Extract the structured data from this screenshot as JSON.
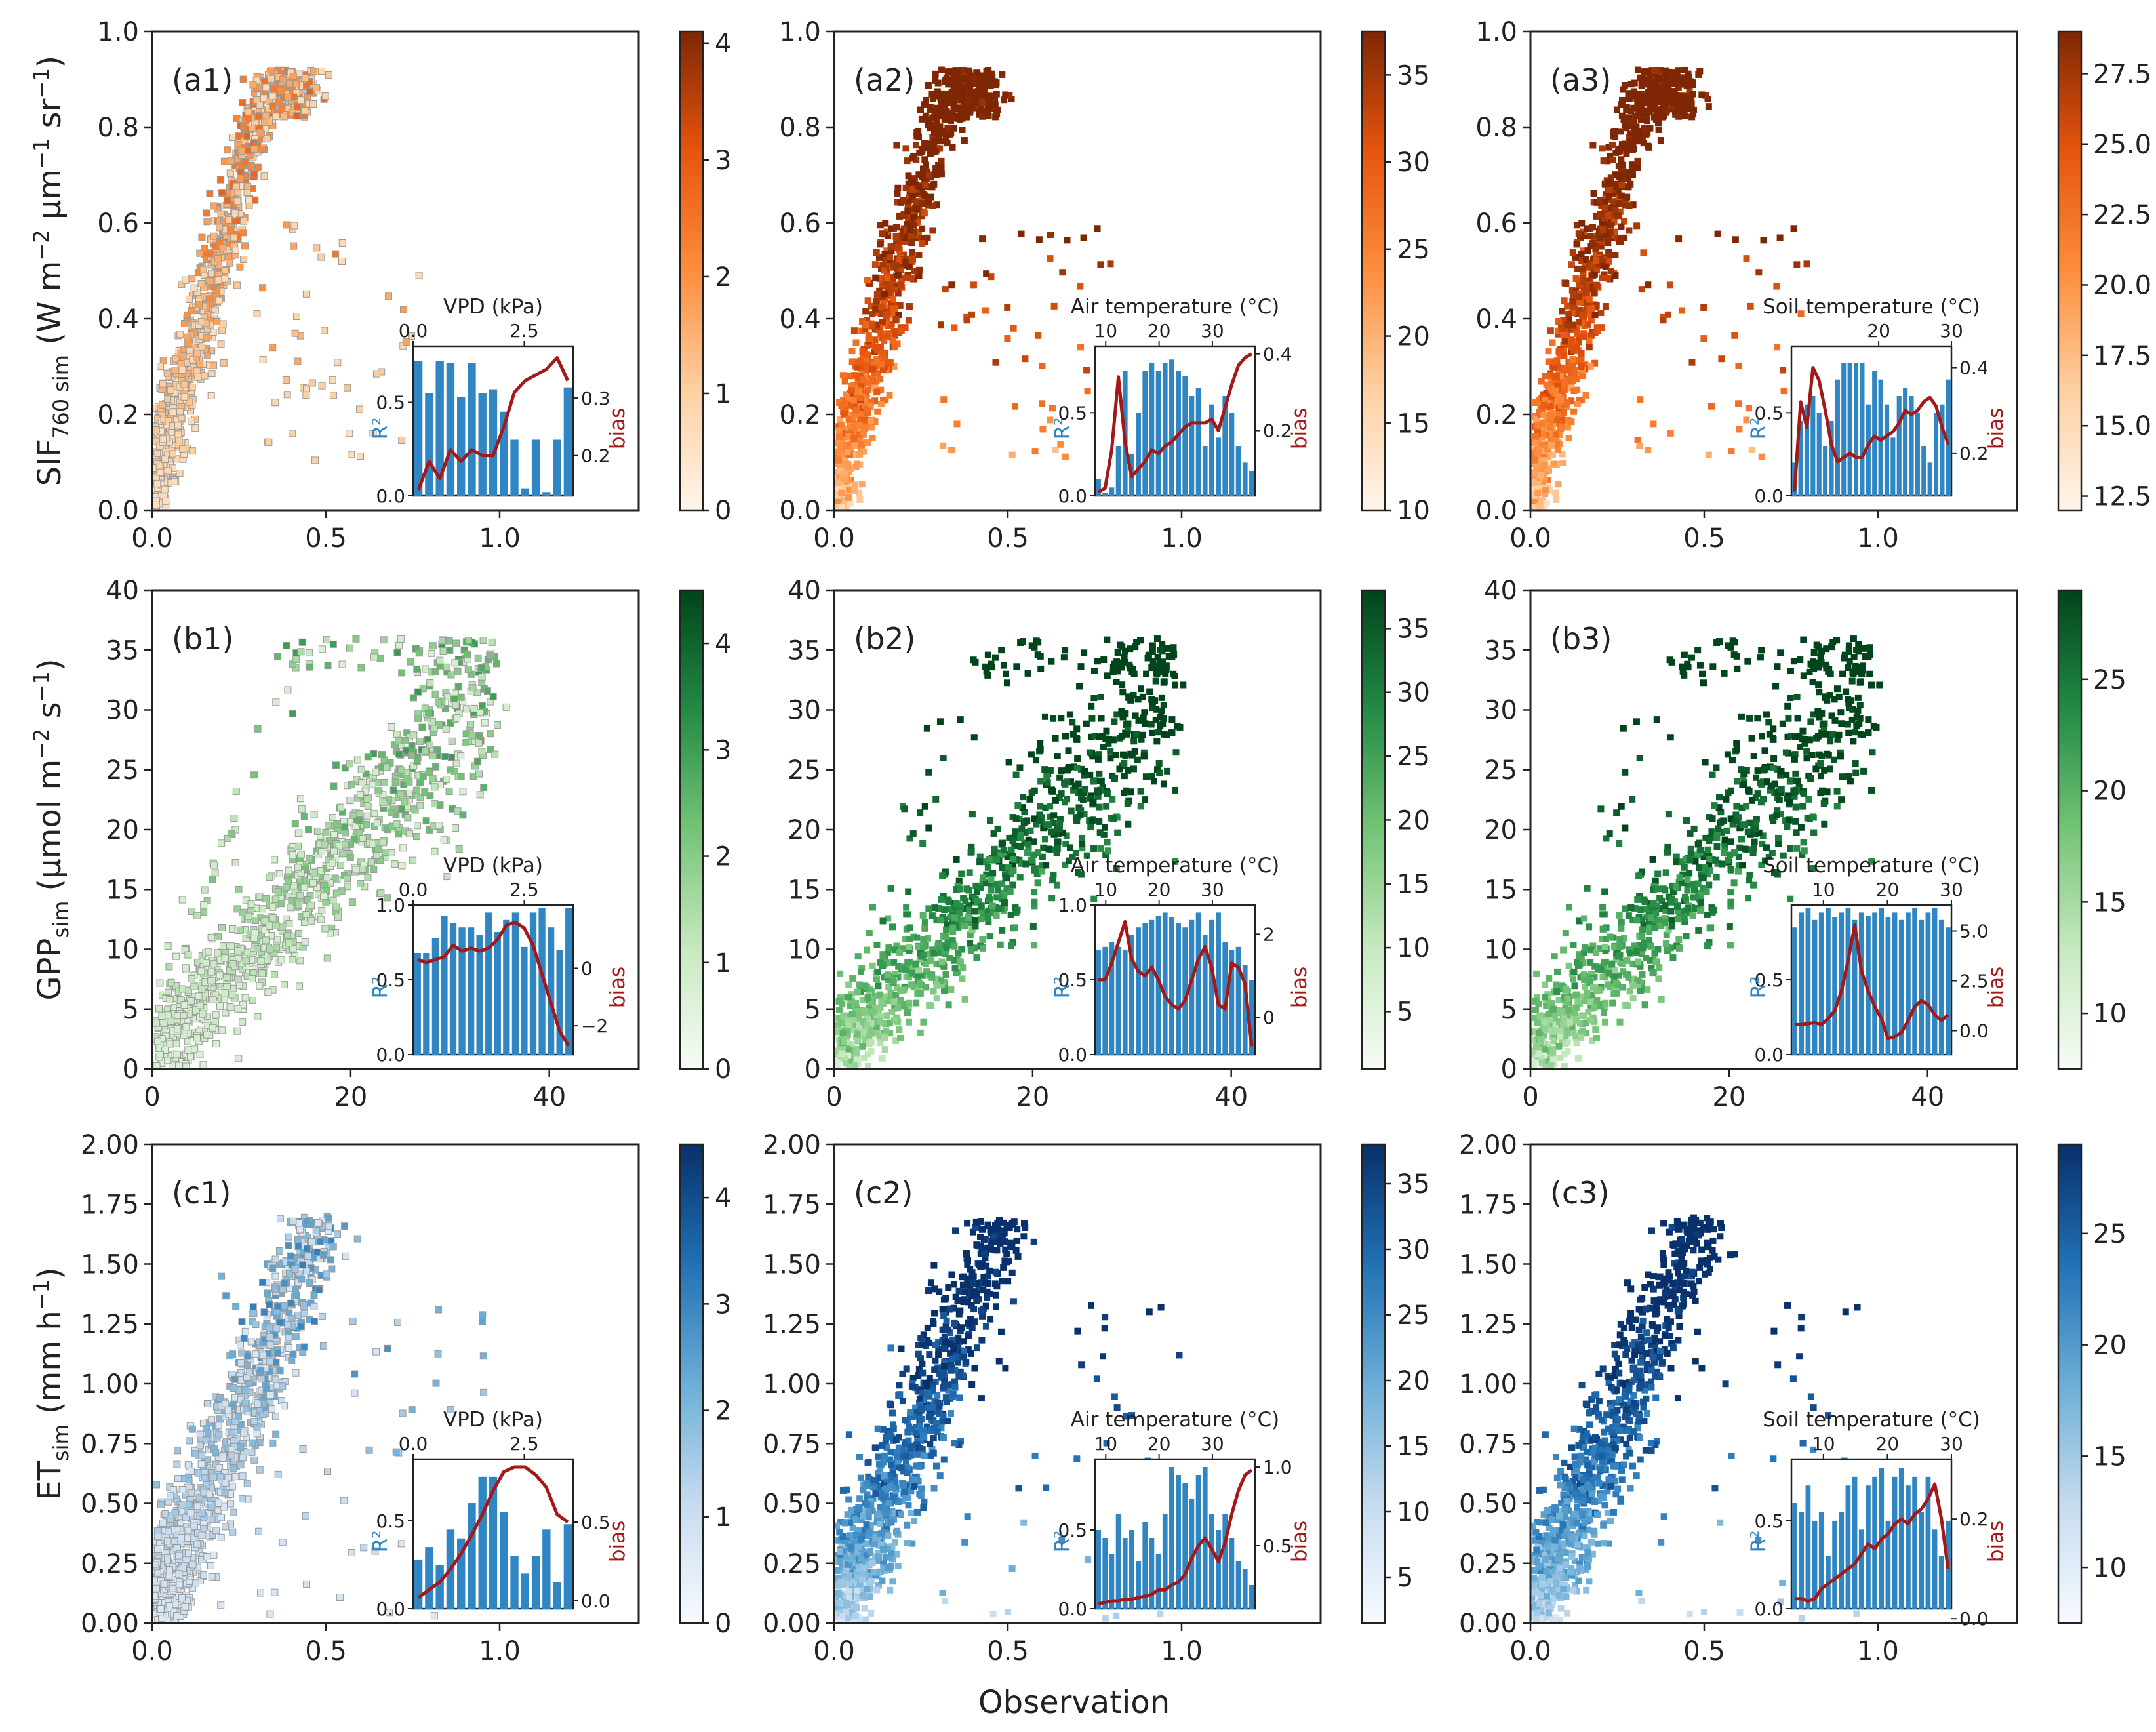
{
  "figure": {
    "x_axis_title": "Observation",
    "colors": {
      "bar": "#2f86c3",
      "bias_line": "#a31818",
      "r2_label": "#2f86c3",
      "bias_label": "#a31818"
    }
  },
  "chart_data": [
    {
      "id": "a1",
      "type": "scatter",
      "panel_label": "(a1)",
      "row": 0,
      "col": 0,
      "cmap": "orange",
      "ylabel": [
        "SIF",
        "760 sim",
        "(W m",
        "−2",
        " μm",
        "−1",
        " sr",
        "−1",
        ")"
      ],
      "xlim": [
        0,
        1.4
      ],
      "xticks": [
        "0.0",
        "0.5",
        "1.0"
      ],
      "ylim": [
        0,
        1.0
      ],
      "yticks": [
        "0.0",
        "0.2",
        "0.4",
        "0.6",
        "0.8",
        "1.0"
      ],
      "colorbar": {
        "range": [
          0,
          4.1
        ],
        "ticks": [
          "0",
          "1",
          "2",
          "3",
          "4"
        ]
      },
      "inset": {
        "title": "VPD (kPa)",
        "xlim": [
          0,
          3.6
        ],
        "xticks": [
          "0.0",
          "2.5"
        ],
        "r2_lim": [
          0,
          0.8
        ],
        "r2_ticks": [
          "0.0",
          "0.5"
        ],
        "bias_lim": [
          0.13,
          0.39
        ],
        "bias_ticks": [
          "0.2",
          "0.3"
        ],
        "r2_label": "R²",
        "bias_label": "bias",
        "r2": [
          0.72,
          0.55,
          0.72,
          0.71,
          0.53,
          0.71,
          0.55,
          0.57,
          0.45,
          0.3,
          0.04,
          0.3,
          0.02,
          0.3,
          0.58
        ],
        "bias": [
          0.14,
          0.19,
          0.16,
          0.21,
          0.19,
          0.21,
          0.2,
          0.2,
          0.25,
          0.31,
          0.33,
          0.34,
          0.35,
          0.37,
          0.33
        ]
      }
    },
    {
      "id": "a2",
      "type": "scatter",
      "panel_label": "(a2)",
      "row": 0,
      "col": 1,
      "cmap": "orange",
      "xlim": [
        0,
        1.4
      ],
      "xticks": [
        "0.0",
        "0.5",
        "1.0"
      ],
      "ylim": [
        0,
        1.0
      ],
      "yticks": [
        "0.0",
        "0.2",
        "0.4",
        "0.6",
        "0.8",
        "1.0"
      ],
      "colorbar": {
        "range": [
          10,
          37.5
        ],
        "ticks": [
          "10",
          "15",
          "20",
          "25",
          "30",
          "35"
        ]
      },
      "inset": {
        "title": "Air temperature (°C)",
        "xlim": [
          8,
          38
        ],
        "xticks": [
          "10",
          "20",
          "30"
        ],
        "r2_lim": [
          0,
          0.9
        ],
        "r2_ticks": [
          "0.0",
          "0.5"
        ],
        "bias_lim": [
          0.03,
          0.42
        ],
        "bias_ticks": [
          "0.2",
          "0.4"
        ],
        "r2_label": "R²",
        "bias_label": "bias",
        "r2": [
          0.1,
          0.02,
          0.05,
          0.3,
          0.75,
          0.25,
          0.5,
          0.75,
          0.8,
          0.75,
          0.8,
          0.82,
          0.75,
          0.72,
          0.6,
          0.65,
          0.3,
          0.55,
          0.35,
          0.6,
          0.5,
          0.3,
          0.2,
          0.15
        ],
        "bias": [
          0.04,
          0.05,
          0.15,
          0.34,
          0.17,
          0.08,
          0.1,
          0.12,
          0.15,
          0.14,
          0.16,
          0.17,
          0.19,
          0.21,
          0.22,
          0.22,
          0.22,
          0.23,
          0.2,
          0.26,
          0.32,
          0.37,
          0.39,
          0.4
        ]
      }
    },
    {
      "id": "a3",
      "type": "scatter",
      "panel_label": "(a3)",
      "row": 0,
      "col": 2,
      "cmap": "orange",
      "xlim": [
        0,
        1.4
      ],
      "xticks": [
        "0.0",
        "0.5",
        "1.0"
      ],
      "ylim": [
        0,
        1.0
      ],
      "yticks": [
        "0.0",
        "0.2",
        "0.4",
        "0.6",
        "0.8",
        "1.0"
      ],
      "colorbar": {
        "range": [
          12,
          29
        ],
        "ticks": [
          "12.5",
          "15.0",
          "17.5",
          "20.0",
          "22.5",
          "25.0",
          "27.5"
        ]
      },
      "inset": {
        "title": "Soil temperature (°C)",
        "xlim": [
          8,
          30
        ],
        "xticks": [
          "20",
          "30"
        ],
        "r2_lim": [
          0,
          0.9
        ],
        "r2_ticks": [
          "0.0",
          "0.5"
        ],
        "bias_lim": [
          0.1,
          0.45
        ],
        "bias_ticks": [
          "0.2",
          "0.4"
        ],
        "r2_label": "R²",
        "bias_label": "bias",
        "r2": [
          0.2,
          0.45,
          0.55,
          0.6,
          0.5,
          0.3,
          0.45,
          0.7,
          0.8,
          0.8,
          0.8,
          0.8,
          0.55,
          0.75,
          0.7,
          0.55,
          0.35,
          0.6,
          0.65,
          0.6,
          0.5,
          0.3,
          0.2,
          0.5,
          0.55,
          0.7
        ],
        "bias": [
          0.11,
          0.32,
          0.26,
          0.4,
          0.37,
          0.3,
          0.22,
          0.18,
          0.19,
          0.2,
          0.19,
          0.19,
          0.22,
          0.24,
          0.23,
          0.24,
          0.25,
          0.27,
          0.3,
          0.29,
          0.3,
          0.32,
          0.33,
          0.31,
          0.26,
          0.22
        ]
      }
    },
    {
      "id": "b1",
      "type": "scatter",
      "panel_label": "(b1)",
      "row": 1,
      "col": 0,
      "cmap": "green",
      "ylabel": [
        "GPP",
        "sim",
        "(μmol m",
        "−2",
        " s",
        "−1",
        ")"
      ],
      "xlim": [
        0,
        49
      ],
      "xticks": [
        "0",
        "20",
        "40"
      ],
      "ylim": [
        0,
        40
      ],
      "yticks": [
        "0",
        "5",
        "10",
        "15",
        "20",
        "25",
        "30",
        "35",
        "40"
      ],
      "colorbar": {
        "range": [
          0,
          4.5
        ],
        "ticks": [
          "0",
          "1",
          "2",
          "3",
          "4"
        ]
      },
      "inset": {
        "title": "VPD (kPa)",
        "xlim": [
          0,
          3.6
        ],
        "xticks": [
          "0.0",
          "2.5"
        ],
        "r2_lim": [
          0,
          1.0
        ],
        "r2_ticks": [
          "0.0",
          "0.5",
          "1.0"
        ],
        "bias_lim": [
          -3,
          2.2
        ],
        "bias_ticks": [
          "−2",
          "0"
        ],
        "r2_label": "R²",
        "bias_label": "bias",
        "r2": [
          0.68,
          0.68,
          0.78,
          0.93,
          0.88,
          0.85,
          0.85,
          0.8,
          0.95,
          0.82,
          0.9,
          0.95,
          0.72,
          0.95,
          0.98,
          0.85,
          0.7,
          0.98
        ],
        "bias": [
          0.3,
          0.2,
          0.3,
          0.4,
          0.8,
          0.6,
          0.7,
          0.6,
          0.7,
          1.0,
          1.5,
          1.6,
          1.4,
          0.8,
          -0.2,
          -1.2,
          -2.2,
          -2.7
        ]
      }
    },
    {
      "id": "b2",
      "type": "scatter",
      "panel_label": "(b2)",
      "row": 1,
      "col": 1,
      "cmap": "green",
      "xlim": [
        0,
        49
      ],
      "xticks": [
        "0",
        "20",
        "40"
      ],
      "ylim": [
        0,
        40
      ],
      "yticks": [
        "0",
        "5",
        "10",
        "15",
        "20",
        "25",
        "30",
        "35",
        "40"
      ],
      "colorbar": {
        "range": [
          0.5,
          38
        ],
        "ticks": [
          "5",
          "10",
          "15",
          "20",
          "25",
          "30",
          "35"
        ]
      },
      "inset": {
        "title": "Air temperature (°C)",
        "xlim": [
          8,
          38
        ],
        "xticks": [
          "10",
          "20",
          "30"
        ],
        "r2_lim": [
          0,
          1.0
        ],
        "r2_ticks": [
          "0.0",
          "0.5",
          "1.0"
        ],
        "bias_lim": [
          -0.9,
          2.7
        ],
        "bias_ticks": [
          "0",
          "2"
        ],
        "r2_label": "R²",
        "bias_label": "bias",
        "r2": [
          0.7,
          0.72,
          0.75,
          0.72,
          0.7,
          0.8,
          0.85,
          0.88,
          0.9,
          0.93,
          0.95,
          0.92,
          0.88,
          0.85,
          0.9,
          0.95,
          0.8,
          0.9,
          0.95,
          0.75,
          0.7,
          0.72,
          0.6,
          0.5
        ],
        "bias": [
          0.9,
          0.9,
          1.3,
          1.8,
          2.3,
          1.4,
          1.1,
          1.0,
          1.2,
          0.9,
          0.5,
          0.3,
          0.2,
          0.4,
          0.9,
          1.4,
          1.7,
          1.2,
          0.3,
          0.2,
          1.3,
          1.2,
          0.8,
          -0.7
        ]
      }
    },
    {
      "id": "b3",
      "type": "scatter",
      "panel_label": "(b3)",
      "row": 1,
      "col": 2,
      "cmap": "green",
      "xlim": [
        0,
        49
      ],
      "xticks": [
        "0",
        "20",
        "40"
      ],
      "ylim": [
        0,
        40
      ],
      "yticks": [
        "0",
        "5",
        "10",
        "15",
        "20",
        "25",
        "30",
        "35",
        "40"
      ],
      "colorbar": {
        "range": [
          7.5,
          29
        ],
        "ticks": [
          "10",
          "15",
          "20",
          "25"
        ]
      },
      "inset": {
        "title": "Soil temperature (°C)",
        "xlim": [
          5,
          30
        ],
        "xticks": [
          "10",
          "20",
          "30"
        ],
        "r2_lim": [
          0,
          1.0
        ],
        "r2_ticks": [
          "0.0",
          "0.5"
        ],
        "bias_lim": [
          -1.2,
          6.3
        ],
        "bias_ticks": [
          "0.0",
          "2.5",
          "5.0"
        ],
        "r2_label": "R²",
        "bias_label": "bias",
        "r2": [
          0.85,
          0.95,
          0.98,
          0.9,
          0.95,
          0.98,
          0.92,
          0.95,
          0.98,
          0.9,
          0.95,
          0.93,
          0.95,
          0.98,
          0.92,
          0.95,
          0.9,
          0.95,
          0.98,
          0.9,
          0.95,
          0.98,
          0.9,
          0.85
        ],
        "bias": [
          0.3,
          0.3,
          0.35,
          0.4,
          0.3,
          0.6,
          1.0,
          2.0,
          3.5,
          5.3,
          3.0,
          2.0,
          1.2,
          0.6,
          -0.4,
          -0.3,
          -0.1,
          0.5,
          1.2,
          1.5,
          1.3,
          0.8,
          0.5,
          0.8
        ]
      }
    },
    {
      "id": "c1",
      "type": "scatter",
      "panel_label": "(c1)",
      "row": 2,
      "col": 0,
      "cmap": "blue",
      "ylabel": [
        "ET",
        "sim",
        "(mm h",
        "−1",
        ")"
      ],
      "xlim": [
        0,
        1.4
      ],
      "xticks": [
        "0.0",
        "0.5",
        "1.0"
      ],
      "ylim": [
        0,
        2.0
      ],
      "yticks": [
        "0.00",
        "0.25",
        "0.50",
        "0.75",
        "1.00",
        "1.25",
        "1.50",
        "1.75",
        "2.00"
      ],
      "colorbar": {
        "range": [
          0,
          4.5
        ],
        "ticks": [
          "0",
          "1",
          "2",
          "3",
          "4"
        ]
      },
      "inset": {
        "title": "VPD (kPa)",
        "xlim": [
          0,
          3.6
        ],
        "xticks": [
          "0.0",
          "2.5"
        ],
        "r2_lim": [
          0,
          0.85
        ],
        "r2_ticks": [
          "0.0",
          "0.5"
        ],
        "bias_lim": [
          -0.05,
          0.9
        ],
        "bias_ticks": [
          "0.0",
          "0.5"
        ],
        "r2_label": "R²",
        "bias_label": "bias",
        "r2": [
          0.28,
          0.35,
          0.25,
          0.45,
          0.4,
          0.6,
          0.75,
          0.75,
          0.55,
          0.3,
          0.2,
          0.3,
          0.45,
          0.15,
          0.48
        ],
        "bias": [
          0.02,
          0.07,
          0.12,
          0.2,
          0.3,
          0.42,
          0.55,
          0.7,
          0.82,
          0.85,
          0.85,
          0.8,
          0.72,
          0.55,
          0.5
        ]
      }
    },
    {
      "id": "c2",
      "type": "scatter",
      "panel_label": "(c2)",
      "row": 2,
      "col": 1,
      "cmap": "blue",
      "xlim": [
        0,
        1.4
      ],
      "xticks": [
        "0.0",
        "0.5",
        "1.0"
      ],
      "ylim": [
        0,
        2.0
      ],
      "yticks": [
        "0.00",
        "0.25",
        "0.50",
        "0.75",
        "1.00",
        "1.25",
        "1.50",
        "1.75",
        "2.00"
      ],
      "colorbar": {
        "range": [
          1.5,
          38
        ],
        "ticks": [
          "5",
          "10",
          "15",
          "20",
          "25",
          "30",
          "35"
        ]
      },
      "inset": {
        "title": "Air temperature (°C)",
        "xlim": [
          8,
          38
        ],
        "xticks": [
          "10",
          "20",
          "30"
        ],
        "r2_lim": [
          0,
          0.95
        ],
        "r2_ticks": [
          "0.0",
          "0.5"
        ],
        "bias_lim": [
          0.1,
          1.05
        ],
        "bias_ticks": [
          "0.5",
          "1.0"
        ],
        "r2_label": "R²",
        "bias_label": "bias",
        "r2": [
          0.5,
          0.45,
          0.35,
          0.6,
          0.45,
          0.5,
          0.3,
          0.55,
          0.45,
          0.35,
          0.6,
          0.9,
          0.85,
          0.8,
          0.7,
          0.85,
          0.9,
          0.6,
          0.5,
          0.6,
          0.45,
          0.3,
          0.25,
          0.15
        ],
        "bias": [
          0.13,
          0.14,
          0.15,
          0.15,
          0.16,
          0.16,
          0.17,
          0.18,
          0.19,
          0.22,
          0.22,
          0.25,
          0.27,
          0.32,
          0.42,
          0.5,
          0.55,
          0.48,
          0.4,
          0.52,
          0.7,
          0.85,
          0.95,
          0.98
        ]
      }
    },
    {
      "id": "c3",
      "type": "scatter",
      "panel_label": "(c3)",
      "row": 2,
      "col": 2,
      "cmap": "blue",
      "xlim": [
        0,
        1.4
      ],
      "xticks": [
        "0.0",
        "0.5",
        "1.0"
      ],
      "ylim": [
        0,
        2.0
      ],
      "yticks": [
        "0.00",
        "0.25",
        "0.50",
        "0.75",
        "1.00",
        "1.25",
        "1.50",
        "1.75",
        "2.00"
      ],
      "colorbar": {
        "range": [
          7.5,
          29
        ],
        "ticks": [
          "10",
          "15",
          "20",
          "25"
        ]
      },
      "inset": {
        "title": "Soil temperature (°C)",
        "xlim": [
          5,
          30
        ],
        "xticks": [
          "10",
          "20",
          "30"
        ],
        "r2_lim": [
          0,
          0.85
        ],
        "r2_ticks": [
          "0.0",
          "0.5"
        ],
        "bias_lim": [
          0.02,
          0.32
        ],
        "bias_ticks": [
          "0.0",
          "0.2"
        ],
        "r2_label": "R²",
        "bias_label": "bias",
        "r2": [
          0.6,
          0.55,
          0.7,
          0.5,
          0.55,
          0.3,
          0.5,
          0.55,
          0.7,
          0.75,
          0.45,
          0.7,
          0.75,
          0.8,
          0.5,
          0.75,
          0.8,
          0.7,
          0.75,
          0.55,
          0.75,
          0.45,
          0.3,
          0.5
        ],
        "bias": [
          0.04,
          0.04,
          0.035,
          0.04,
          0.06,
          0.07,
          0.08,
          0.09,
          0.1,
          0.11,
          0.13,
          0.15,
          0.14,
          0.16,
          0.17,
          0.19,
          0.2,
          0.19,
          0.21,
          0.22,
          0.24,
          0.27,
          0.2,
          0.1
        ]
      }
    }
  ]
}
